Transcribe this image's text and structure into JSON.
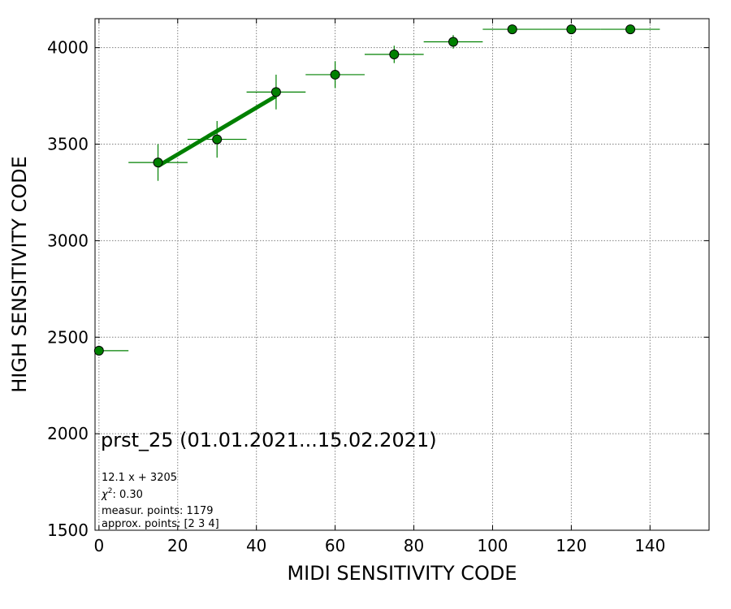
{
  "chart_data": {
    "type": "scatter",
    "xlabel": "MIDI SENSITIVITY CODE",
    "ylabel": "HIGH SENSITIVITY CODE",
    "xlim": [
      -1,
      155
    ],
    "ylim": [
      1500,
      4150
    ],
    "xticks": [
      0,
      20,
      40,
      60,
      80,
      100,
      120,
      140
    ],
    "yticks": [
      1500,
      2000,
      2500,
      3000,
      3500,
      4000
    ],
    "grid": true,
    "marker_color": "#008000",
    "points": [
      {
        "x": 0,
        "y": 2430,
        "xerr": [
          0,
          7.5
        ],
        "yerr": 0
      },
      {
        "x": 15,
        "y": 3405,
        "xerr": [
          7.5,
          7.5
        ],
        "yerr": 95
      },
      {
        "x": 30,
        "y": 3525,
        "xerr": [
          7.5,
          7.5
        ],
        "yerr": 95
      },
      {
        "x": 45,
        "y": 3770,
        "xerr": [
          7.5,
          7.5
        ],
        "yerr": 90
      },
      {
        "x": 60,
        "y": 3860,
        "xerr": [
          7.5,
          7.5
        ],
        "yerr": 70
      },
      {
        "x": 75,
        "y": 3965,
        "xerr": [
          7.5,
          7.5
        ],
        "yerr": 45
      },
      {
        "x": 90,
        "y": 4030,
        "xerr": [
          7.5,
          7.5
        ],
        "yerr": 35
      },
      {
        "x": 105,
        "y": 4095,
        "xerr": [
          7.5,
          7.5
        ],
        "yerr": 0
      },
      {
        "x": 120,
        "y": 4095,
        "xerr": [
          7.5,
          7.5
        ],
        "yerr": 0
      },
      {
        "x": 135,
        "y": 4095,
        "xerr": [
          7.5,
          7.5
        ],
        "yerr": 0
      }
    ],
    "fit": {
      "slope": 12.1,
      "intercept": 3205,
      "x_range": [
        15,
        45
      ]
    },
    "annotations": {
      "title": "prst_25 (01.01.2021...15.02.2021)",
      "fit_label": "12.1 x + 3205",
      "chi2_value": "0.30",
      "measur_points": "measur. points: 1179",
      "approx_points": "approx. points: [2 3 4]"
    }
  }
}
